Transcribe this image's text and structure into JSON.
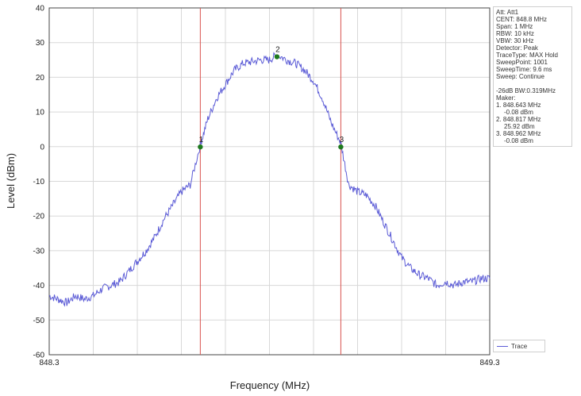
{
  "chart_data": {
    "type": "line",
    "xlabel": "Frequency (MHz)",
    "ylabel": "Level (dBm)",
    "xlim": [
      848.3,
      849.3
    ],
    "ylim": [
      -60,
      40
    ],
    "x_tick_labels": [
      "848.3",
      "849.3"
    ],
    "y_ticks": [
      40,
      30,
      20,
      10,
      0,
      -10,
      -20,
      -30,
      -40,
      -50,
      -60
    ],
    "grid": true,
    "legend_position": "bottom-right",
    "series": [
      {
        "name": "Trace",
        "color": "#5b5bd6",
        "x": [
          848.3,
          848.32,
          848.34,
          848.36,
          848.38,
          848.4,
          848.42,
          848.44,
          848.46,
          848.48,
          848.5,
          848.52,
          848.54,
          848.56,
          848.58,
          848.6,
          848.62,
          848.643,
          848.66,
          848.68,
          848.7,
          848.72,
          848.74,
          848.76,
          848.78,
          848.8,
          848.817,
          848.84,
          848.86,
          848.88,
          848.9,
          848.92,
          848.94,
          848.962,
          848.98,
          849.0,
          849.02,
          849.04,
          849.06,
          849.08,
          849.1,
          849.12,
          849.14,
          849.16,
          849.18,
          849.2,
          849.22,
          849.24,
          849.26,
          849.28,
          849.3
        ],
        "y": [
          -43,
          -44,
          -45,
          -43,
          -44,
          -43,
          -41,
          -40,
          -39,
          -36,
          -33,
          -30,
          -26,
          -21,
          -17,
          -13,
          -11,
          0.5,
          8,
          14,
          18,
          22,
          24,
          24.5,
          25,
          25,
          26.5,
          25,
          24,
          22,
          19,
          14,
          7,
          1,
          -11,
          -13,
          -14,
          -17,
          -22,
          -27,
          -32,
          -35,
          -37,
          -38,
          -40,
          -39,
          -40,
          -39,
          -39,
          -38,
          -38
        ]
      }
    ],
    "markers": [
      {
        "label": "1",
        "x": 848.643,
        "y": -0.08
      },
      {
        "label": "2",
        "x": 848.817,
        "y": 25.92
      },
      {
        "label": "3",
        "x": 848.962,
        "y": -0.08
      }
    ],
    "vertical_lines": [
      848.643,
      848.962
    ],
    "info": [
      "Att: Att1",
      "CENT: 848.8 MHz",
      "Span: 1 MHz",
      "RBW: 10 kHz",
      "VBW: 30 kHz",
      "Detector: Peak",
      "TraceType: MAX Hold",
      "SweepPoint: 1001",
      "SweepTime: 9.6 ms",
      "Sweep: Continue"
    ],
    "marker_info": [
      "-26dB BW:0.319MHz",
      "Maker:",
      "1. 848.643 MHz",
      "   -0.08 dBm",
      "2. 848.817 MHz",
      "   25.92 dBm",
      "3. 848.962 MHz",
      "   -0.08 dBm"
    ],
    "legend_label": "Trace",
    "colors": {
      "trace": "#5b5bd6",
      "vline": "#d9534f",
      "marker": "#1e7a1e",
      "grid": "#d8d8d8"
    }
  }
}
